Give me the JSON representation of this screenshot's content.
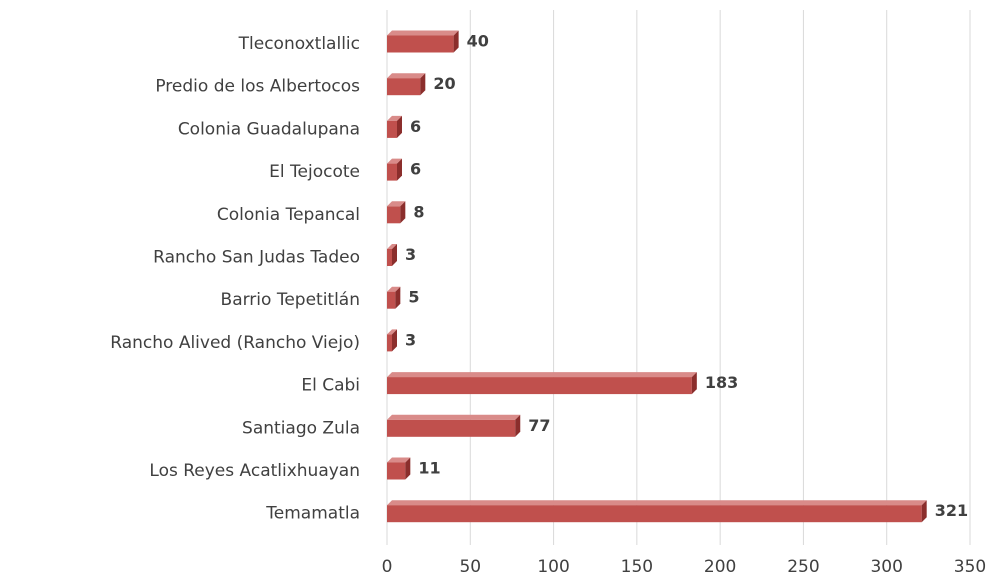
{
  "chart_data": {
    "type": "bar",
    "orientation": "horizontal",
    "categories": [
      "Tleconoxtlallic",
      "Predio de los Albertocos",
      "Colonia Guadalupana",
      "El Tejocote",
      "Colonia Tepancal",
      "Rancho San Judas Tadeo",
      "Barrio Tepetitlán",
      "Rancho Alived (Rancho Viejo)",
      "El Cabi",
      "Santiago Zula",
      "Los Reyes Acatlixhuayan",
      "Temamatla"
    ],
    "values": [
      40,
      20,
      6,
      6,
      8,
      3,
      5,
      3,
      183,
      77,
      11,
      321
    ],
    "color": "#c0504d",
    "xlim": [
      0,
      350
    ],
    "xticks": [
      0,
      50,
      100,
      150,
      200,
      250,
      300,
      350
    ],
    "grid": true
  }
}
